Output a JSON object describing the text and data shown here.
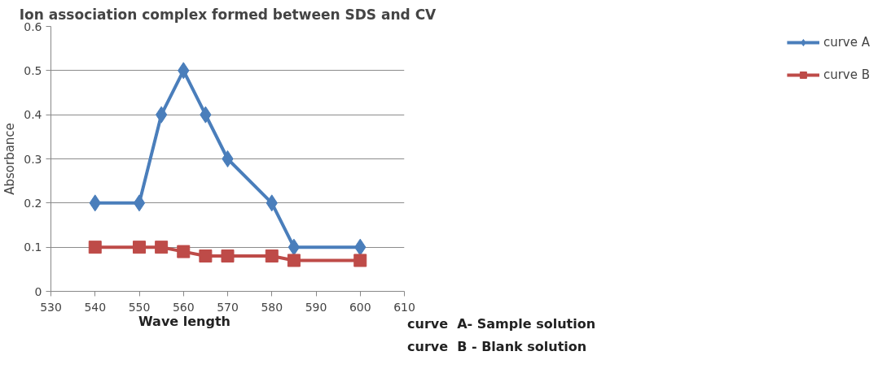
{
  "chart_data": {
    "type": "line",
    "title": "Ion association complex formed between SDS and CV",
    "xlabel": "Wave length",
    "ylabel": "Absorbance",
    "x": [
      540,
      550,
      555,
      560,
      565,
      570,
      580,
      585,
      600
    ],
    "series": [
      {
        "name": "curve A",
        "color": "#4a7ebb",
        "marker": "diamond",
        "values": [
          0.2,
          0.2,
          0.4,
          0.5,
          0.4,
          0.3,
          0.2,
          0.1,
          0.1
        ]
      },
      {
        "name": "curve B",
        "color": "#be4b48",
        "marker": "square",
        "values": [
          0.1,
          0.1,
          0.1,
          0.09,
          0.08,
          0.08,
          0.08,
          0.07,
          0.07
        ]
      }
    ],
    "xlim": [
      530,
      610
    ],
    "xticks": [
      530,
      540,
      550,
      560,
      570,
      580,
      590,
      600,
      610
    ],
    "ylim": [
      0,
      0.6
    ],
    "yticks": [
      0,
      0.1,
      0.2,
      0.3,
      0.4,
      0.5,
      0.6
    ],
    "grid": "y",
    "legend": "right",
    "annotations": [
      "curve  A- Sample solution",
      "curve  B - Blank solution"
    ]
  }
}
